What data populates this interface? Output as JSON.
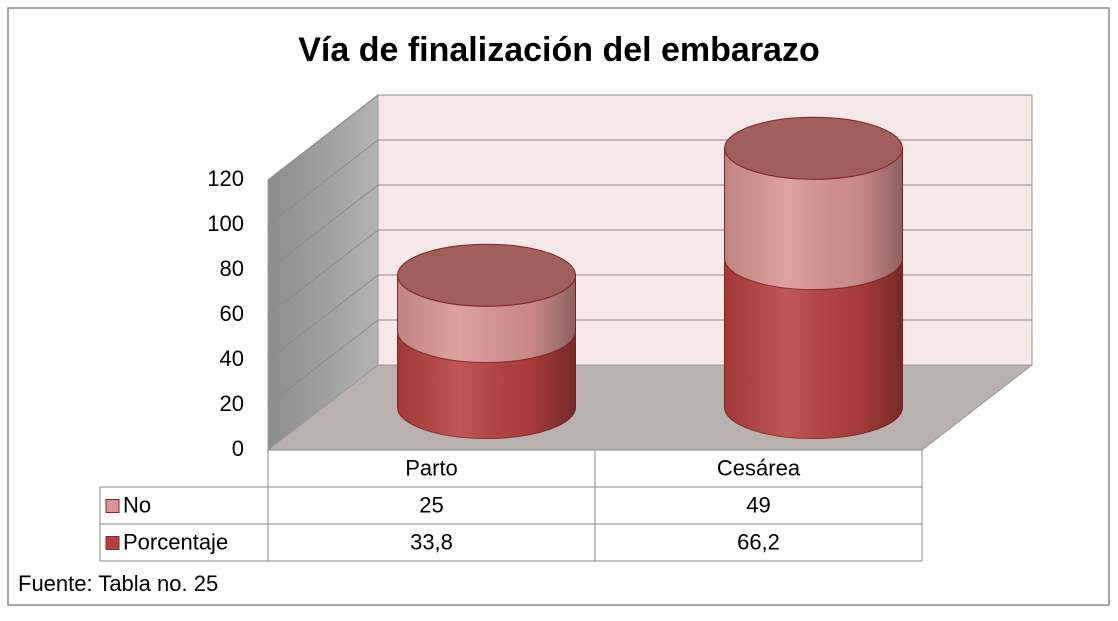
{
  "chart_data": {
    "type": "bar3d_stacked_cylinder",
    "title": "Vía de finalización del embarazo",
    "categories": [
      "Parto",
      "Cesárea"
    ],
    "series": [
      {
        "name": "Porcentaje",
        "color": "#b5403f",
        "values": [
          33.8,
          66.2
        ],
        "value_labels": [
          "33,8",
          "66,2"
        ]
      },
      {
        "name": "No",
        "color": "#d99594",
        "values": [
          25,
          49
        ]
      }
    ],
    "ylim": [
      0,
      120
    ],
    "yticks": [
      0,
      20,
      40,
      60,
      80,
      100,
      120
    ],
    "grid": true,
    "data_table": true,
    "source": "Fuente: Tabla no. 25"
  }
}
